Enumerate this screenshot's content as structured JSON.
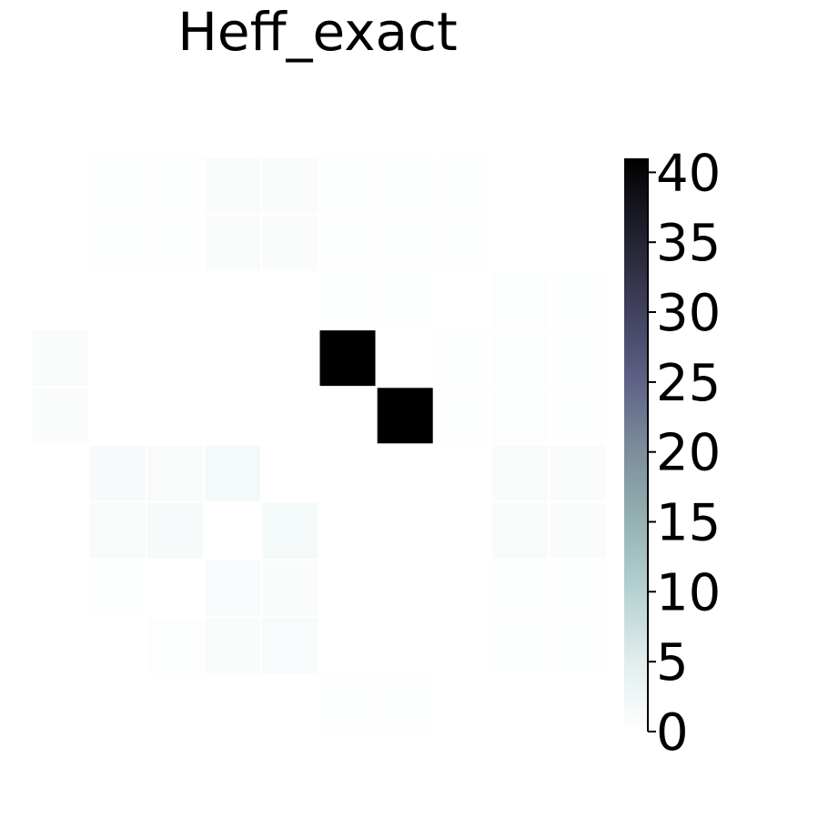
{
  "chart_data": {
    "type": "heatmap",
    "title": "Heff_exact",
    "xlabel": "",
    "ylabel": "",
    "grid": false,
    "rows": 10,
    "cols": 10,
    "values": [
      [
        0.0,
        0.3,
        0.4,
        0.9,
        0.9,
        0.3,
        0.3,
        0.4,
        0.0,
        0.0
      ],
      [
        0.0,
        0.3,
        0.4,
        0.9,
        0.9,
        0.3,
        0.3,
        0.4,
        0.0,
        0.0
      ],
      [
        0.0,
        0.0,
        0.0,
        0.0,
        0.0,
        0.4,
        0.5,
        0.0,
        0.5,
        0.4
      ],
      [
        0.8,
        0.0,
        0.0,
        0.0,
        0.0,
        41.0,
        0.0,
        0.4,
        0.5,
        0.4
      ],
      [
        0.8,
        0.0,
        0.0,
        0.0,
        0.0,
        0.0,
        41.0,
        0.4,
        0.5,
        0.4
      ],
      [
        0.0,
        1.4,
        1.0,
        1.8,
        0.0,
        0.0,
        0.0,
        0.0,
        1.0,
        0.8
      ],
      [
        0.0,
        1.0,
        1.4,
        0.0,
        1.8,
        0.0,
        0.0,
        0.0,
        1.0,
        0.8
      ],
      [
        0.0,
        0.4,
        0.0,
        1.2,
        0.9,
        0.0,
        0.0,
        0.0,
        0.3,
        0.3
      ],
      [
        0.0,
        0.0,
        0.5,
        0.9,
        1.2,
        0.0,
        0.0,
        0.0,
        0.3,
        0.3
      ],
      [
        0.0,
        0.0,
        0.0,
        0.0,
        0.0,
        0.4,
        0.4,
        0.0,
        0.0,
        0.0
      ]
    ],
    "colorbar": {
      "colormap": "bone_r",
      "min": 0,
      "max": 41,
      "ticks": [
        0,
        5,
        10,
        15,
        20,
        25,
        30,
        35,
        40
      ],
      "tick_labels": [
        "0",
        "5",
        "10",
        "15",
        "20",
        "25",
        "30",
        "35",
        "40"
      ]
    }
  }
}
